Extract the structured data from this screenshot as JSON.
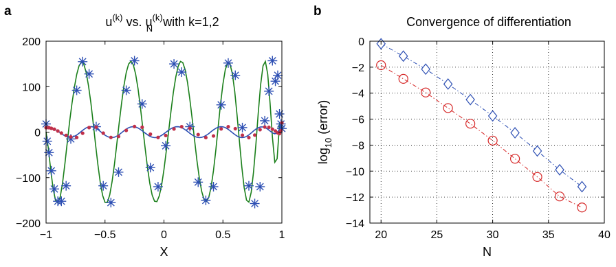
{
  "chart_data": [
    {
      "type": "line",
      "panel_label": "a",
      "title": "u(k) vs. uN(k) with k=1,2",
      "title_parts": {
        "u1": "u",
        "sup1": "(k)",
        "mid": " vs. ",
        "u2": "u",
        "sub2": "N",
        "sup2": "(k)",
        "tail": " with k=1,2"
      },
      "xlabel": "X",
      "ylabel": "",
      "xlim": [
        -1,
        1
      ],
      "ylim": [
        -200,
        200
      ],
      "xticks": [
        -1,
        -0.5,
        0,
        0.5,
        1
      ],
      "yticks": [
        -200,
        -100,
        0,
        100,
        200
      ],
      "grid": false,
      "series": [
        {
          "color": "#1a7f1a",
          "style": "solid",
          "x": [
            -1,
            -0.98,
            -0.96,
            -0.94,
            -0.92,
            -0.9,
            -0.88,
            -0.86,
            -0.84,
            -0.82,
            -0.8,
            -0.78,
            -0.76,
            -0.74,
            -0.72,
            -0.7,
            -0.68,
            -0.66,
            -0.64,
            -0.62,
            -0.6,
            -0.58,
            -0.56,
            -0.54,
            -0.52,
            -0.5,
            -0.48,
            -0.46,
            -0.44,
            -0.42,
            -0.4,
            -0.38,
            -0.36,
            -0.34,
            -0.32,
            -0.3,
            -0.28,
            -0.26,
            -0.24,
            -0.22,
            -0.2,
            -0.18,
            -0.16,
            -0.14,
            -0.12,
            -0.1,
            -0.08,
            -0.06,
            -0.04,
            -0.02,
            0,
            0.02,
            0.04,
            0.06,
            0.08,
            0.1,
            0.12,
            0.14,
            0.16,
            0.18,
            0.2,
            0.22,
            0.24,
            0.26,
            0.28,
            0.3,
            0.32,
            0.34,
            0.36,
            0.38,
            0.4,
            0.42,
            0.44,
            0.46,
            0.48,
            0.5,
            0.52,
            0.54,
            0.56,
            0.58,
            0.6,
            0.62,
            0.64,
            0.66,
            0.68,
            0.7,
            0.72,
            0.74,
            0.76,
            0.78,
            0.8,
            0.82,
            0.84,
            0.86,
            0.88,
            0.9,
            0.92,
            0.94,
            0.96,
            0.98,
            1
          ],
          "y": [
            0,
            -36.6,
            -84.8,
            -124.4,
            -149.4,
            -155.8,
            -142.3,
            -111.9,
            -69.6,
            -22.1,
            23.5,
            63.1,
            98.5,
            127.0,
            145.9,
            154.2,
            149.5,
            131.4,
            102.4,
            64.3,
            19.6,
            -27.5,
            -72.8,
            -111.2,
            -139.3,
            -154.5,
            -153.9,
            -138.1,
            -109.1,
            -70.3,
            -26.3,
            19.4,
            63.1,
            101.4,
            130.9,
            149.9,
            155.9,
            148.3,
            127.5,
            95.2,
            54.9,
            10.2,
            -35.1,
            -77.4,
            -112.6,
            -138.3,
            -152.0,
            -152.8,
            -140.5,
            -116.4,
            -82.2,
            -41.1,
            3.2,
            47.4,
            87.9,
            121.2,
            144.6,
            155.5,
            152.9,
            136.8,
            108.9,
            71.2,
            27.5,
            -18.7,
            -63.1,
            -101.8,
            -130.6,
            -147.9,
            -152.5,
            -143.4,
            -120.5,
            -84.9,
            -38.8,
            12.4,
            62.6,
            105.9,
            137.2,
            152.6,
            149.9,
            128.4,
            89.8,
            37.5,
            -20.8,
            -76.3,
            -121.6,
            -149.8,
            -154.0,
            -132.3,
            -87.3,
            -25.2,
            43.3,
            104.3,
            145.8,
            155.4,
            127.6,
            64.1,
            -12.1,
            -66.3,
            -58.6,
            18.6,
            9.0
          ]
        },
        {
          "color": "#2d4fb3",
          "style": "solid",
          "x": [
            -1,
            -0.98,
            -0.96,
            -0.94,
            -0.92,
            -0.9,
            -0.88,
            -0.86,
            -0.84,
            -0.82,
            -0.8,
            -0.78,
            -0.76,
            -0.74,
            -0.72,
            -0.7,
            -0.68,
            -0.66,
            -0.64,
            -0.62,
            -0.6,
            -0.58,
            -0.56,
            -0.54,
            -0.52,
            -0.5,
            -0.48,
            -0.46,
            -0.44,
            -0.42,
            -0.4,
            -0.38,
            -0.36,
            -0.34,
            -0.32,
            -0.3,
            -0.28,
            -0.26,
            -0.24,
            -0.22,
            -0.2,
            -0.18,
            -0.16,
            -0.14,
            -0.12,
            -0.1,
            -0.08,
            -0.06,
            -0.04,
            -0.02,
            0,
            0.02,
            0.04,
            0.06,
            0.08,
            0.1,
            0.12,
            0.14,
            0.16,
            0.18,
            0.2,
            0.22,
            0.24,
            0.26,
            0.28,
            0.3,
            0.32,
            0.34,
            0.36,
            0.38,
            0.4,
            0.42,
            0.44,
            0.46,
            0.48,
            0.5,
            0.52,
            0.54,
            0.56,
            0.58,
            0.6,
            0.62,
            0.64,
            0.66,
            0.68,
            0.7,
            0.72,
            0.74,
            0.76,
            0.78,
            0.8,
            0.82,
            0.84,
            0.86,
            0.88,
            0.9,
            0.92,
            0.94,
            0.96,
            0.98,
            1
          ],
          "y": [
            9.8,
            10.4,
            9.6,
            8.0,
            5.6,
            2.4,
            -1.2,
            -5.0,
            -8.2,
            -10.5,
            -11.6,
            -11.3,
            -9.4,
            -6.3,
            -2.4,
            1.8,
            5.9,
            9.3,
            11.4,
            12.2,
            11.3,
            9.0,
            5.6,
            1.5,
            -2.7,
            -6.6,
            -9.7,
            -11.6,
            -12.1,
            -11.1,
            -8.8,
            -5.4,
            -1.4,
            2.8,
            6.6,
            9.6,
            11.5,
            12.0,
            11.2,
            9.0,
            5.9,
            2.1,
            -2.0,
            -5.8,
            -9.0,
            -11.1,
            -12.1,
            -11.7,
            -10.0,
            -7.1,
            -3.5,
            0.5,
            4.4,
            7.8,
            10.3,
            11.8,
            12.0,
            10.9,
            8.6,
            5.3,
            1.5,
            -2.6,
            -6.3,
            -9.3,
            -11.3,
            -12.1,
            -11.5,
            -9.7,
            -6.8,
            -3.1,
            1.0,
            5.0,
            8.4,
            10.8,
            11.9,
            11.6,
            9.9,
            7.0,
            3.2,
            -1.0,
            -5.1,
            -8.6,
            -11.0,
            -12.0,
            -11.5,
            -9.4,
            -6.0,
            -1.8,
            2.6,
            6.6,
            9.7,
            11.4,
            11.4,
            9.6,
            6.5,
            2.4,
            -1.6,
            -3.8,
            -1.6,
            6.7,
            20.5
          ]
        },
        {
          "color": "#2d4fb3",
          "style": "asterisk",
          "x": [
            -1,
            -0.99,
            -0.975,
            -0.955,
            -0.93,
            -0.9,
            -0.87,
            -0.83,
            -0.79,
            -0.74,
            -0.69,
            -0.635,
            -0.575,
            -0.515,
            -0.45,
            -0.385,
            -0.32,
            -0.25,
            -0.185,
            -0.115,
            -0.05,
            0.015,
            0.085,
            0.15,
            0.22,
            0.29,
            0.355,
            0.42,
            0.485,
            0.545,
            0.605,
            0.665,
            0.72,
            0.77,
            0.815,
            0.855,
            0.89,
            0.92,
            0.945,
            0.965,
            0.98,
            0.992,
            1
          ],
          "y": [
            18,
            -20,
            -45,
            -85,
            -125,
            -152,
            -152,
            -118,
            -15,
            92,
            155,
            128,
            12,
            -118,
            -155,
            -88,
            92,
            157,
            62,
            -78,
            -120,
            -30,
            150,
            132,
            12,
            -110,
            -150,
            -120,
            60,
            152,
            125,
            10,
            -118,
            -157,
            -120,
            25,
            90,
            157,
            112,
            125,
            40,
            18,
            8
          ]
        },
        {
          "color": "#c0304a",
          "style": "dot",
          "x": [
            -1,
            -0.99,
            -0.975,
            -0.955,
            -0.93,
            -0.9,
            -0.87,
            -0.83,
            -0.79,
            -0.74,
            -0.69,
            -0.635,
            -0.575,
            -0.515,
            -0.45,
            -0.385,
            -0.32,
            -0.25,
            -0.185,
            -0.115,
            -0.05,
            0.015,
            0.085,
            0.15,
            0.22,
            0.29,
            0.355,
            0.42,
            0.485,
            0.545,
            0.605,
            0.665,
            0.72,
            0.77,
            0.815,
            0.855,
            0.89,
            0.92,
            0.945,
            0.965,
            0.98,
            0.992,
            1
          ],
          "y": [
            9.8,
            10.1,
            9.8,
            8.4,
            6.4,
            2.4,
            -2.1,
            -7.2,
            -10.5,
            -11.8,
            -2.4,
            10.0,
            10.9,
            -2.3,
            -11.6,
            -9.5,
            3.8,
            12.3,
            10.7,
            -4.5,
            -11.7,
            -7.4,
            7.0,
            11.9,
            8.6,
            -5.4,
            -12.0,
            -8.4,
            7.1,
            11.9,
            7.6,
            -6.8,
            -12.1,
            -6.5,
            5.4,
            11.2,
            10.6,
            6.5,
            2.4,
            -1.6,
            -3.2,
            3.0,
            20.5
          ]
        }
      ]
    },
    {
      "type": "line",
      "panel_label": "b",
      "title": "Convergence of differentiation",
      "xlabel": "N",
      "ylabel": "log10 (error)",
      "ylabel_parts": {
        "pre": "log",
        "sub": "10",
        "post": " (error)"
      },
      "xlim": [
        19,
        40
      ],
      "ylim": [
        -14,
        0
      ],
      "xticks": [
        20,
        25,
        30,
        35,
        40
      ],
      "yticks": [
        0,
        -2,
        -4,
        -6,
        -8,
        -10,
        -12,
        -14
      ],
      "grid": true,
      "series": [
        {
          "color": "#2d4fb3",
          "style": "dashdot-diamond",
          "x": [
            20,
            22,
            24,
            26,
            28,
            30,
            32,
            34,
            36,
            38
          ],
          "y": [
            -0.2,
            -1.15,
            -2.15,
            -3.3,
            -4.5,
            -5.75,
            -7.05,
            -8.45,
            -9.9,
            -11.2
          ]
        },
        {
          "color": "#d62828",
          "style": "dashdot-circle",
          "x": [
            20,
            22,
            24,
            26,
            28,
            30,
            32,
            34,
            36,
            38
          ],
          "y": [
            -1.85,
            -2.9,
            -3.95,
            -5.15,
            -6.35,
            -7.65,
            -9.05,
            -10.45,
            -11.95,
            -12.8
          ]
        }
      ]
    }
  ]
}
